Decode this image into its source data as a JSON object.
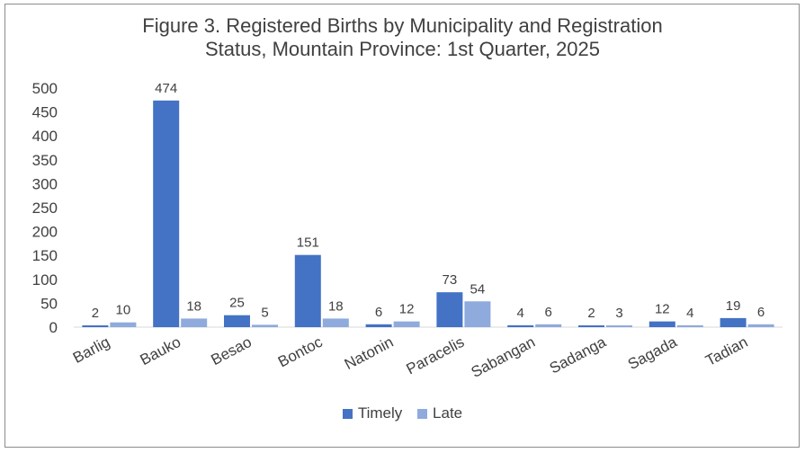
{
  "chart_data": {
    "type": "bar",
    "title_line1": "Figure 3. Registered Births by Municipality and Registration",
    "title_line2": "Status, Mountain Province: 1st Quarter, 2025",
    "categories": [
      "Barlig",
      "Bauko",
      "Besao",
      "Bontoc",
      "Natonin",
      "Paracelis",
      "Sabangan",
      "Sadanga",
      "Sagada",
      "Tadian"
    ],
    "series": [
      {
        "name": "Timely",
        "color": "#4472C4",
        "values": [
          2,
          474,
          25,
          151,
          6,
          73,
          4,
          2,
          12,
          19
        ]
      },
      {
        "name": "Late",
        "color": "#8FAADC",
        "values": [
          10,
          18,
          5,
          18,
          12,
          54,
          6,
          3,
          4,
          6
        ]
      }
    ],
    "ylim": [
      0,
      500
    ],
    "yticks": [
      "0",
      "50",
      "100",
      "150",
      "200",
      "250",
      "300",
      "350",
      "400",
      "450",
      "500"
    ],
    "grid": false,
    "legend_position": "bottom"
  }
}
